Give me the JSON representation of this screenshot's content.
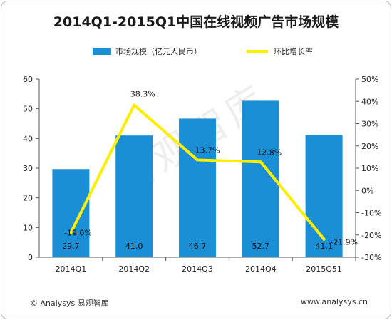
{
  "chart_data": {
    "type": "bar",
    "title": "2014Q1-2015Q1中国在线视频广告市场规模",
    "categories": [
      "2014Q1",
      "2014Q2",
      "2014Q3",
      "2014Q4",
      "2015Q51"
    ],
    "series": [
      {
        "name": "市场规模（亿元人民币）",
        "type": "bar",
        "axis": "left",
        "values": [
          29.7,
          41.0,
          46.7,
          52.7,
          41.1
        ],
        "labels": [
          "29.7",
          "41.0",
          "46.7",
          "52.7",
          "41.1"
        ]
      },
      {
        "name": "环比增长率",
        "type": "line",
        "axis": "right",
        "values": [
          -19.0,
          38.3,
          13.7,
          12.8,
          -21.9
        ],
        "labels": [
          "-19.0%",
          "38.3%",
          "13.7%",
          "12.8%",
          "-21.9%"
        ]
      }
    ],
    "y_left": {
      "min": 0,
      "max": 60,
      "ticks": [
        "0",
        "10",
        "20",
        "30",
        "40",
        "50",
        "60"
      ]
    },
    "y_right": {
      "min": -30,
      "max": 50,
      "ticks": [
        "-30%",
        "-20%",
        "-10%",
        "0%",
        "10%",
        "20%",
        "30%",
        "40%",
        "50%"
      ]
    },
    "legend_position": "top",
    "grid": false,
    "colors": {
      "bar": "#1b8fd6",
      "line": "#ffee00",
      "axis": "#555555"
    }
  },
  "watermark": "易观智库",
  "footer": {
    "left": "© Analysys 易观智库",
    "right": "www.analysys.cn"
  }
}
